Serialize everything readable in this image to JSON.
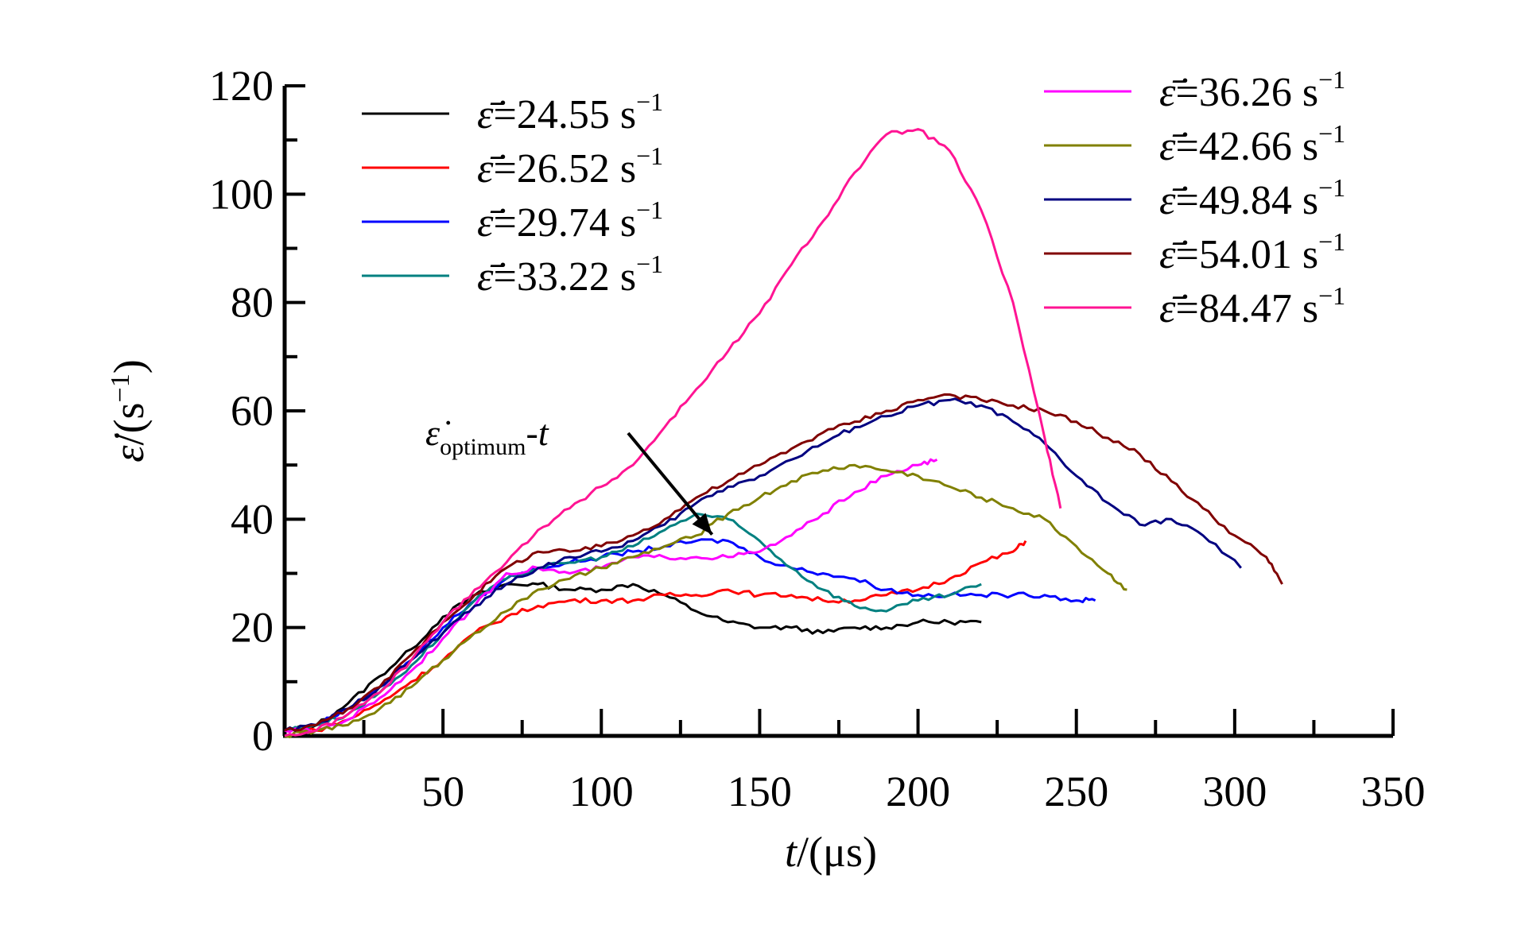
{
  "chart_data": {
    "type": "line",
    "title": "",
    "xlabel": {
      "var": "t",
      "unit": "/(μs)"
    },
    "ylabel": {
      "var": "ε̇",
      "unit_pre": "/(s",
      "unit_sup": "−1",
      "unit_post": ")"
    },
    "xlim": [
      0,
      350
    ],
    "ylim": [
      0,
      120
    ],
    "x_ticks": [
      50,
      100,
      150,
      200,
      250,
      300,
      350
    ],
    "y_ticks": [
      0,
      20,
      40,
      60,
      80,
      100,
      120
    ],
    "legend_symbol": "ε̇̄",
    "legend_unit": "s",
    "legend_unit_sup": "−1",
    "annotation": {
      "main": "ε̇",
      "sub": "optimum",
      "suffix": "-t",
      "points_to": [
        140,
        36
      ]
    },
    "series": [
      {
        "name": "24.55",
        "color": "#000000",
        "points": [
          [
            0,
            1
          ],
          [
            10,
            2
          ],
          [
            20,
            6
          ],
          [
            30,
            11
          ],
          [
            40,
            16
          ],
          [
            50,
            22
          ],
          [
            60,
            26
          ],
          [
            70,
            28
          ],
          [
            80,
            28
          ],
          [
            90,
            27
          ],
          [
            100,
            27
          ],
          [
            110,
            28
          ],
          [
            120,
            26
          ],
          [
            130,
            23
          ],
          [
            140,
            21
          ],
          [
            150,
            20
          ],
          [
            160,
            20
          ],
          [
            170,
            19
          ],
          [
            180,
            20
          ],
          [
            190,
            20
          ],
          [
            200,
            21
          ],
          [
            210,
            21
          ],
          [
            220,
            21
          ]
        ]
      },
      {
        "name": "26.52",
        "color": "#ff0000",
        "points": [
          [
            0,
            1
          ],
          [
            10,
            1
          ],
          [
            20,
            3
          ],
          [
            30,
            6
          ],
          [
            40,
            10
          ],
          [
            50,
            14
          ],
          [
            60,
            19
          ],
          [
            70,
            22
          ],
          [
            80,
            24
          ],
          [
            90,
            25
          ],
          [
            100,
            25
          ],
          [
            110,
            25
          ],
          [
            120,
            26
          ],
          [
            130,
            26
          ],
          [
            140,
            27
          ],
          [
            150,
            26
          ],
          [
            160,
            26
          ],
          [
            170,
            25
          ],
          [
            180,
            25
          ],
          [
            190,
            26
          ],
          [
            200,
            27
          ],
          [
            210,
            29
          ],
          [
            220,
            32
          ],
          [
            230,
            34
          ],
          [
            234,
            36
          ]
        ]
      },
      {
        "name": "29.74",
        "color": "#0000ff",
        "points": [
          [
            0,
            1
          ],
          [
            10,
            2
          ],
          [
            20,
            5
          ],
          [
            30,
            9
          ],
          [
            40,
            14
          ],
          [
            50,
            20
          ],
          [
            60,
            25
          ],
          [
            70,
            29
          ],
          [
            80,
            31
          ],
          [
            90,
            32
          ],
          [
            100,
            33
          ],
          [
            110,
            34
          ],
          [
            120,
            35
          ],
          [
            130,
            36
          ],
          [
            140,
            36
          ],
          [
            150,
            33
          ],
          [
            160,
            31
          ],
          [
            170,
            30
          ],
          [
            180,
            29
          ],
          [
            190,
            27
          ],
          [
            200,
            26
          ],
          [
            210,
            26
          ],
          [
            220,
            26
          ],
          [
            230,
            26
          ],
          [
            240,
            26
          ],
          [
            250,
            25
          ],
          [
            256,
            25
          ]
        ]
      },
      {
        "name": "33.22",
        "color": "#008080",
        "points": [
          [
            0,
            1
          ],
          [
            10,
            2
          ],
          [
            20,
            4
          ],
          [
            30,
            8
          ],
          [
            40,
            13
          ],
          [
            50,
            19
          ],
          [
            60,
            25
          ],
          [
            70,
            29
          ],
          [
            80,
            31
          ],
          [
            90,
            32
          ],
          [
            100,
            33
          ],
          [
            110,
            35
          ],
          [
            120,
            38
          ],
          [
            130,
            41
          ],
          [
            140,
            40
          ],
          [
            150,
            36
          ],
          [
            160,
            31
          ],
          [
            170,
            27
          ],
          [
            180,
            24
          ],
          [
            190,
            23
          ],
          [
            200,
            25
          ],
          [
            210,
            26
          ],
          [
            220,
            28
          ]
        ]
      },
      {
        "name": "36.26",
        "color": "#ff00ff",
        "points": [
          [
            0,
            1
          ],
          [
            10,
            1
          ],
          [
            20,
            3
          ],
          [
            30,
            7
          ],
          [
            40,
            12
          ],
          [
            50,
            18
          ],
          [
            60,
            24
          ],
          [
            70,
            30
          ],
          [
            80,
            31
          ],
          [
            90,
            30
          ],
          [
            100,
            31
          ],
          [
            110,
            33
          ],
          [
            120,
            33
          ],
          [
            130,
            33
          ],
          [
            140,
            33
          ],
          [
            150,
            34
          ],
          [
            160,
            37
          ],
          [
            170,
            41
          ],
          [
            180,
            45
          ],
          [
            190,
            48
          ],
          [
            200,
            50
          ],
          [
            206,
            51
          ]
        ]
      },
      {
        "name": "42.66",
        "color": "#808000",
        "points": [
          [
            0,
            0
          ],
          [
            10,
            1
          ],
          [
            20,
            2
          ],
          [
            30,
            5
          ],
          [
            40,
            9
          ],
          [
            50,
            14
          ],
          [
            60,
            19
          ],
          [
            70,
            23
          ],
          [
            80,
            27
          ],
          [
            90,
            29
          ],
          [
            100,
            31
          ],
          [
            110,
            33
          ],
          [
            120,
            35
          ],
          [
            130,
            37
          ],
          [
            140,
            41
          ],
          [
            150,
            44
          ],
          [
            160,
            47
          ],
          [
            170,
            49
          ],
          [
            180,
            50
          ],
          [
            190,
            49
          ],
          [
            200,
            48
          ],
          [
            210,
            46
          ],
          [
            220,
            44
          ],
          [
            230,
            42
          ],
          [
            240,
            40
          ],
          [
            250,
            35
          ],
          [
            260,
            30
          ],
          [
            266,
            27
          ]
        ]
      },
      {
        "name": "49.84",
        "color": "#000080",
        "points": [
          [
            0,
            1
          ],
          [
            10,
            2
          ],
          [
            20,
            5
          ],
          [
            30,
            9
          ],
          [
            40,
            14
          ],
          [
            50,
            19
          ],
          [
            60,
            24
          ],
          [
            70,
            28
          ],
          [
            80,
            31
          ],
          [
            90,
            33
          ],
          [
            100,
            34
          ],
          [
            110,
            36
          ],
          [
            120,
            39
          ],
          [
            130,
            43
          ],
          [
            140,
            46
          ],
          [
            150,
            48
          ],
          [
            160,
            51
          ],
          [
            170,
            54
          ],
          [
            180,
            57
          ],
          [
            190,
            59
          ],
          [
            200,
            61
          ],
          [
            210,
            62
          ],
          [
            220,
            61
          ],
          [
            230,
            58
          ],
          [
            240,
            54
          ],
          [
            250,
            48
          ],
          [
            260,
            43
          ],
          [
            270,
            39
          ],
          [
            280,
            40
          ],
          [
            290,
            37
          ],
          [
            302,
            31
          ]
        ]
      },
      {
        "name": "54.01",
        "color": "#800000",
        "points": [
          [
            0,
            1
          ],
          [
            10,
            2
          ],
          [
            20,
            5
          ],
          [
            30,
            9
          ],
          [
            40,
            15
          ],
          [
            50,
            21
          ],
          [
            60,
            26
          ],
          [
            70,
            31
          ],
          [
            80,
            34
          ],
          [
            90,
            34
          ],
          [
            100,
            35
          ],
          [
            110,
            37
          ],
          [
            120,
            40
          ],
          [
            130,
            44
          ],
          [
            140,
            47
          ],
          [
            150,
            50
          ],
          [
            160,
            53
          ],
          [
            170,
            56
          ],
          [
            180,
            58
          ],
          [
            190,
            60
          ],
          [
            200,
            62
          ],
          [
            210,
            63
          ],
          [
            220,
            62
          ],
          [
            230,
            61
          ],
          [
            240,
            60
          ],
          [
            250,
            58
          ],
          [
            260,
            55
          ],
          [
            270,
            52
          ],
          [
            280,
            47
          ],
          [
            290,
            42
          ],
          [
            300,
            37
          ],
          [
            310,
            33
          ],
          [
            315,
            28
          ]
        ]
      },
      {
        "name": "84.47",
        "color": "#ff1493",
        "points": [
          [
            0,
            0
          ],
          [
            10,
            1
          ],
          [
            20,
            4
          ],
          [
            30,
            8
          ],
          [
            40,
            14
          ],
          [
            50,
            21
          ],
          [
            60,
            27
          ],
          [
            70,
            32
          ],
          [
            80,
            38
          ],
          [
            90,
            42
          ],
          [
            100,
            46
          ],
          [
            110,
            50
          ],
          [
            120,
            57
          ],
          [
            130,
            64
          ],
          [
            140,
            71
          ],
          [
            150,
            78
          ],
          [
            160,
            87
          ],
          [
            170,
            95
          ],
          [
            180,
            104
          ],
          [
            190,
            111
          ],
          [
            200,
            112
          ],
          [
            210,
            108
          ],
          [
            220,
            97
          ],
          [
            230,
            80
          ],
          [
            240,
            55
          ],
          [
            245,
            42
          ]
        ]
      }
    ]
  }
}
